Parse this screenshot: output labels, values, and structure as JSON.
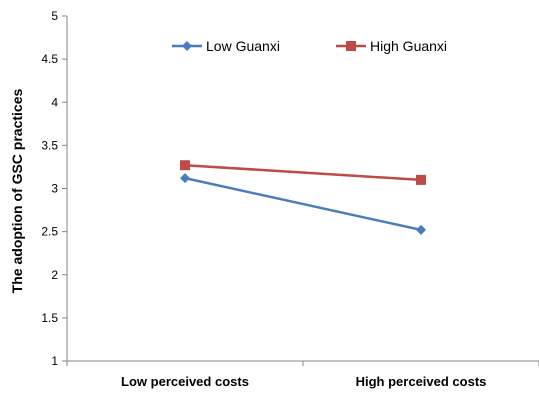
{
  "chart_data": {
    "type": "line",
    "categories": [
      "Low perceived costs",
      "High perceived costs"
    ],
    "series": [
      {
        "name": "Low Guanxi",
        "values": [
          3.12,
          2.52
        ],
        "color": "#4a7ebb",
        "marker": "diamond"
      },
      {
        "name": "High Guanxi",
        "values": [
          3.27,
          3.1
        ],
        "color": "#be4b48",
        "marker": "square"
      }
    ],
    "ylabel": "The adoption of GSC practices",
    "xlabel": "",
    "ylim": [
      1,
      5
    ],
    "yticks": [
      "1",
      "1.5",
      "2",
      "2.5",
      "3",
      "3.5",
      "4",
      "4.5",
      "5"
    ],
    "grid": false,
    "legend_position": "top"
  }
}
